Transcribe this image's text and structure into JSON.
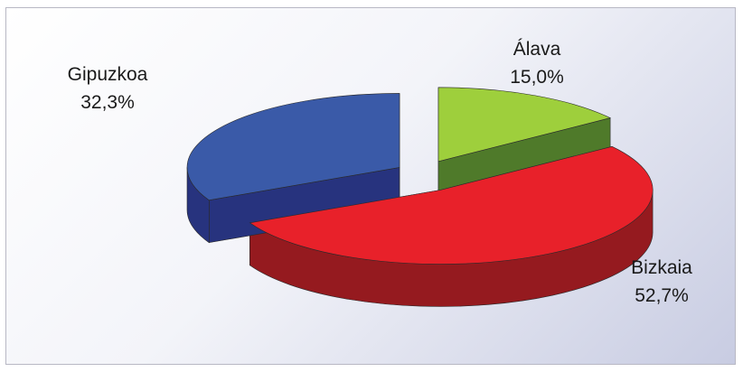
{
  "chart_data": {
    "type": "pie",
    "style": "3d-exploded",
    "slices": [
      {
        "label": "Álava",
        "value": 15.0,
        "value_label": "15,0%",
        "color": "#9ecf3c",
        "side_color": "#4f7a2a"
      },
      {
        "label": "Bizkaia",
        "value": 52.7,
        "value_label": "52,7%",
        "color": "#e8212a",
        "side_color": "#951a1f"
      },
      {
        "label": "Gipuzkoa",
        "value": 32.3,
        "value_label": "32,3%",
        "color": "#3a5aa8",
        "side_color": "#27337e"
      }
    ]
  }
}
